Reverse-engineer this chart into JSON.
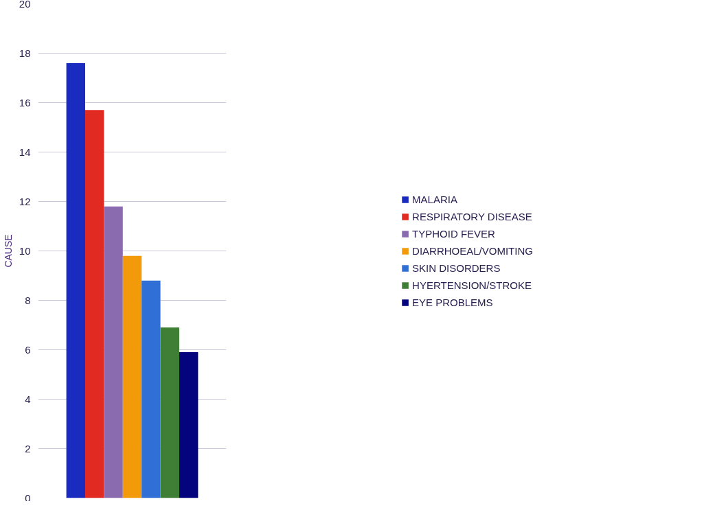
{
  "chart_data": {
    "type": "bar",
    "ylabel": "CAUSE",
    "categories": [
      null
    ],
    "series": [
      {
        "name": "MALARIA",
        "color": "#1a2bbf",
        "values": [
          17.6
        ]
      },
      {
        "name": "RESPIRATORY DISEASE",
        "color": "#e02a22",
        "values": [
          15.7
        ]
      },
      {
        "name": "TYPHOID FEVER",
        "color": "#8a6bb0",
        "values": [
          11.8
        ]
      },
      {
        "name": "DIARRHOEAL/VOMITING",
        "color": "#f29a0a",
        "values": [
          9.8
        ]
      },
      {
        "name": "SKIN DISORDERS",
        "color": "#2f6fd6",
        "values": [
          8.8
        ]
      },
      {
        "name": "HYERTENSION/STROKE",
        "color": "#3f7f35",
        "values": [
          6.9
        ]
      },
      {
        "name": "EYE PROBLEMS",
        "color": "#03047e",
        "values": [
          5.9
        ]
      }
    ],
    "ylim": [
      0,
      20
    ],
    "yticks": [
      0,
      2,
      4,
      6,
      8,
      10,
      12,
      14,
      16,
      18,
      20
    ],
    "grid": "y",
    "legend": "right",
    "tick_labels": "y"
  }
}
